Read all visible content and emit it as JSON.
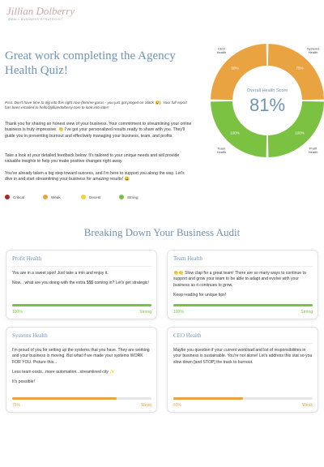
{
  "header": {
    "logo": "Jillian Dolberry",
    "tagline": "SMALL BUSINESS STRATEGIST"
  },
  "intro": {
    "title": "Great work completing the Agency Health Quiz!",
    "note": "Psst. Don't have time to dig into this right now (femme gurus - you just got pinged on Slack 😉). Your full report has been emailed to hello@jilliandolberry.com to look into later!",
    "paragraphs": [
      "Thank you for sharing an honest view of your business. Your commitment to streamlining your online business is truly impressive. 👏 I've got your personalized results ready to share with you. They'll guide you in preventing burnout and effectively managing your business, team, and profits.",
      "Take a look at your detailed feedback below. It's tailored to your unique needs and will provide valuable insights to help you make positive changes right away.",
      "You've already taken a big step toward success, and I'm here to support you along the way. Let's dive in and start streamlining your business for amazing results! 😀"
    ]
  },
  "legend": [
    {
      "label": "Critical",
      "color": "#a8282a"
    },
    {
      "label": "Weak",
      "color": "#e9a441"
    },
    {
      "label": "Decent",
      "color": "#f2d43a"
    },
    {
      "label": "Strong",
      "color": "#7cc242"
    }
  ],
  "chart_data": {
    "type": "donut",
    "center_title": "Overall Health Score",
    "center_value": "81%",
    "categories": [
      "Systems Health",
      "Profit Health",
      "Team Health",
      "CEO Health"
    ],
    "values": [
      75,
      100,
      100,
      50
    ],
    "value_labels": [
      "75%",
      "100%",
      "100%",
      "50%"
    ],
    "colors": [
      "#e9a441",
      "#7cc242",
      "#7cc242",
      "#e9a441"
    ]
  },
  "section_title": "Breaking Down Your Business Audit",
  "bar_range": [
    0,
    100
  ],
  "cards": [
    {
      "title": "Profit Health",
      "paragraphs": [
        "You are in a sweet spot! Just take a min and enjoy it.",
        "Now... what are you doing with the extra $$$ coming in? Let's get strategic!"
      ],
      "score": 100,
      "score_label": "100%",
      "status": "Strong",
      "color": "#7cc242"
    },
    {
      "title": "Team Health",
      "paragraphs": [
        "👏👏 Slow clap for a great team! There are so many ways to continue to support and grow your team to be able to adapt and evolve with your business as it continues to grow.",
        "Keep reading for unique tips!"
      ],
      "score": 100,
      "score_label": "100%",
      "status": "Strong",
      "color": "#7cc242"
    },
    {
      "title": "Systems Health",
      "paragraphs": [
        "I'm proud of you for setting up the systems that you have. They are working and your business is moving. But what if we made your systems WORK FOR YOU. Picture this...",
        "Less team costs...more automation...streamlined city ✨",
        "It's possible!"
      ],
      "score": 75,
      "score_label": "75%",
      "status": "Weak",
      "color": "#e9a441"
    },
    {
      "title": "CEO Health",
      "paragraphs": [
        "Maybe you question if your current workload and list of responsibilities in your business is sustainable. You're not alone! Let's address this stat so you slow down [and STOP] the track to burnout."
      ],
      "score": 50,
      "score_label": "50%",
      "status": "Weak",
      "color": "#e9a441"
    }
  ]
}
